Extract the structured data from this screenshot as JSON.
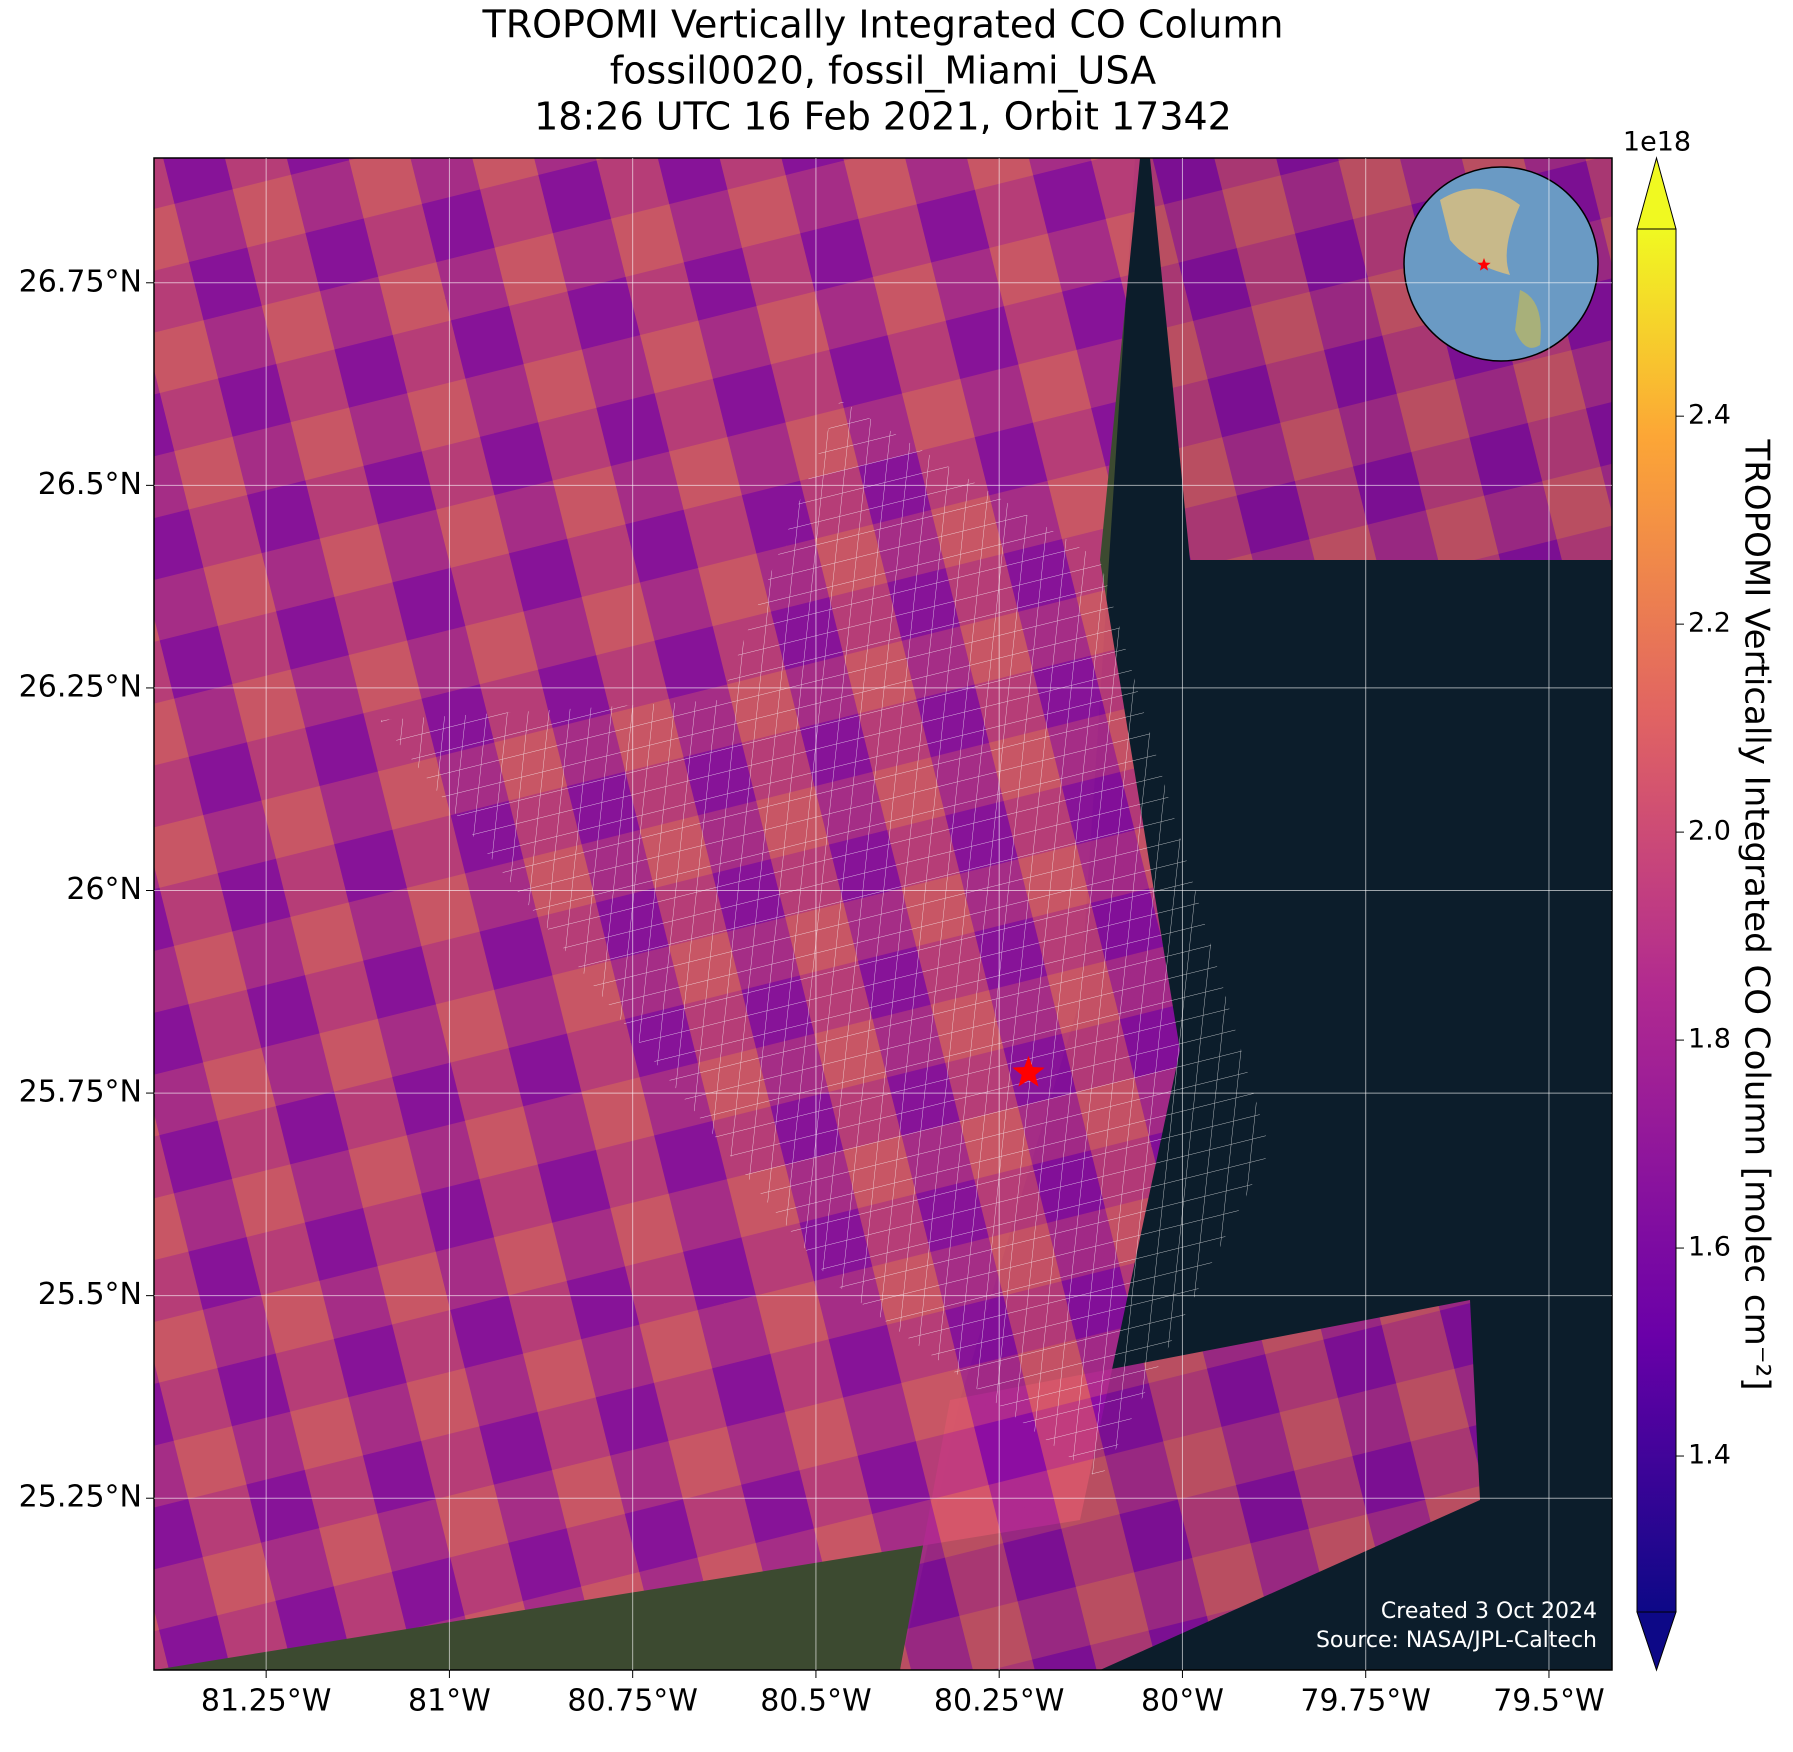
{
  "chart_data": {
    "type": "map",
    "title": [
      "TROPOMI Vertically Integrated CO Column",
      "fossil0020, fossil_Miami_USA",
      "18:26 UTC 16 Feb 2021, Orbit 17342"
    ],
    "xlim": [
      -81.403,
      -79.414
    ],
    "xticks": [
      {
        "value": -81.25,
        "label": "81.25°W"
      },
      {
        "value": -81,
        "label": "81°W"
      },
      {
        "value": -80.75,
        "label": "80.75°W"
      },
      {
        "value": -80.5,
        "label": "80.5°W"
      },
      {
        "value": -80.25,
        "label": "80.25°W"
      },
      {
        "value": -80,
        "label": "80°W"
      },
      {
        "value": -79.75,
        "label": "79.75°W"
      },
      {
        "value": -79.5,
        "label": "79.5°W"
      }
    ],
    "ylim": [
      25.038,
      26.904
    ],
    "yticks": [
      {
        "value": 25.25,
        "label": "25.25°N"
      },
      {
        "value": 25.5,
        "label": "25.5°N"
      },
      {
        "value": 25.75,
        "label": "25.75°N"
      },
      {
        "value": 26,
        "label": "26°N"
      },
      {
        "value": 26.25,
        "label": "26.25°N"
      },
      {
        "value": 26.5,
        "label": "26.5°N"
      },
      {
        "value": 26.75,
        "label": "26.75°N"
      }
    ],
    "grid": true,
    "site": {
      "lon": -80.21,
      "lat": 25.775
    },
    "colorbar": {
      "label": "TROPOMI Vertically Integrated CO Column [molec cm⁻²]",
      "offset_label": "1e18",
      "lim": [
        1.25,
        2.58
      ],
      "ticks": [
        1.4,
        1.6,
        1.8,
        {
          "value": 2,
          "label": "2.0"
        },
        2.2,
        2.4
      ]
    },
    "credits": [
      "Created 3 Oct 2024",
      "Source: NASA/JPL-Caltech"
    ]
  }
}
